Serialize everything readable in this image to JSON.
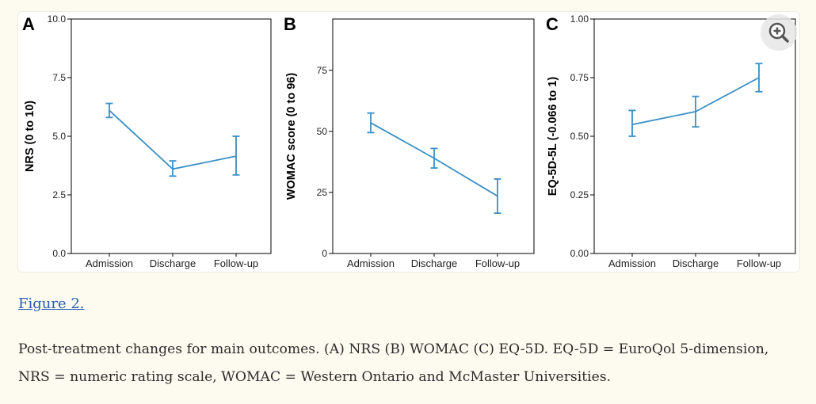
{
  "chart_data": [
    {
      "type": "line",
      "panel_label": "A",
      "categories": [
        "Admission",
        "Discharge",
        "Follow-up"
      ],
      "values": [
        6.1,
        3.6,
        4.15
      ],
      "error_low": [
        5.8,
        3.3,
        3.35
      ],
      "error_high": [
        6.4,
        3.95,
        5.0
      ],
      "ylabel": "NRS (0 to 10)",
      "ylim": [
        0,
        10
      ],
      "yticks": [
        0.0,
        2.5,
        5.0,
        7.5,
        10.0
      ],
      "ytick_labels": [
        "0.0",
        "2.5",
        "5.0",
        "7.5",
        "10.0"
      ]
    },
    {
      "type": "line",
      "panel_label": "B",
      "categories": [
        "Admission",
        "Discharge",
        "Follow-up"
      ],
      "values": [
        53.5,
        39.0,
        23.5
      ],
      "error_low": [
        49.5,
        35.0,
        16.5
      ],
      "error_high": [
        57.5,
        43.0,
        30.5
      ],
      "ylabel": "WOMAC score (0 to 96)",
      "ylim": [
        0,
        96
      ],
      "yticks": [
        0,
        25,
        50,
        75
      ],
      "ytick_labels": [
        "0",
        "25",
        "50",
        "75"
      ]
    },
    {
      "type": "line",
      "panel_label": "C",
      "categories": [
        "Admission",
        "Discharge",
        "Follow-up"
      ],
      "values": [
        0.55,
        0.605,
        0.75
      ],
      "error_low": [
        0.5,
        0.54,
        0.69
      ],
      "error_high": [
        0.61,
        0.67,
        0.81
      ],
      "ylabel": "EQ-5D-5L (-0.066 to 1)",
      "ylim": [
        0,
        1
      ],
      "yticks": [
        0.0,
        0.25,
        0.5,
        0.75,
        1.0
      ],
      "ytick_labels": [
        "0.00",
        "0.25",
        "0.50",
        "0.75",
        "1.00"
      ]
    }
  ],
  "colors": {
    "line": "#3a8fc7",
    "link": "#2a5db0",
    "text": "#2b2b2b",
    "background": "#fdfbf0"
  },
  "zoom_icon": "magnify-plus-icon",
  "figure_link": "Figure 2.",
  "caption_line1": "Post-treatment changes for main outcomes. (A) NRS (B) WOMAC (C) EQ-5D. EQ-5D = EuroQol 5-dimension,",
  "caption_line2": "NRS = numeric rating scale, WOMAC = Western Ontario and McMaster Universities."
}
